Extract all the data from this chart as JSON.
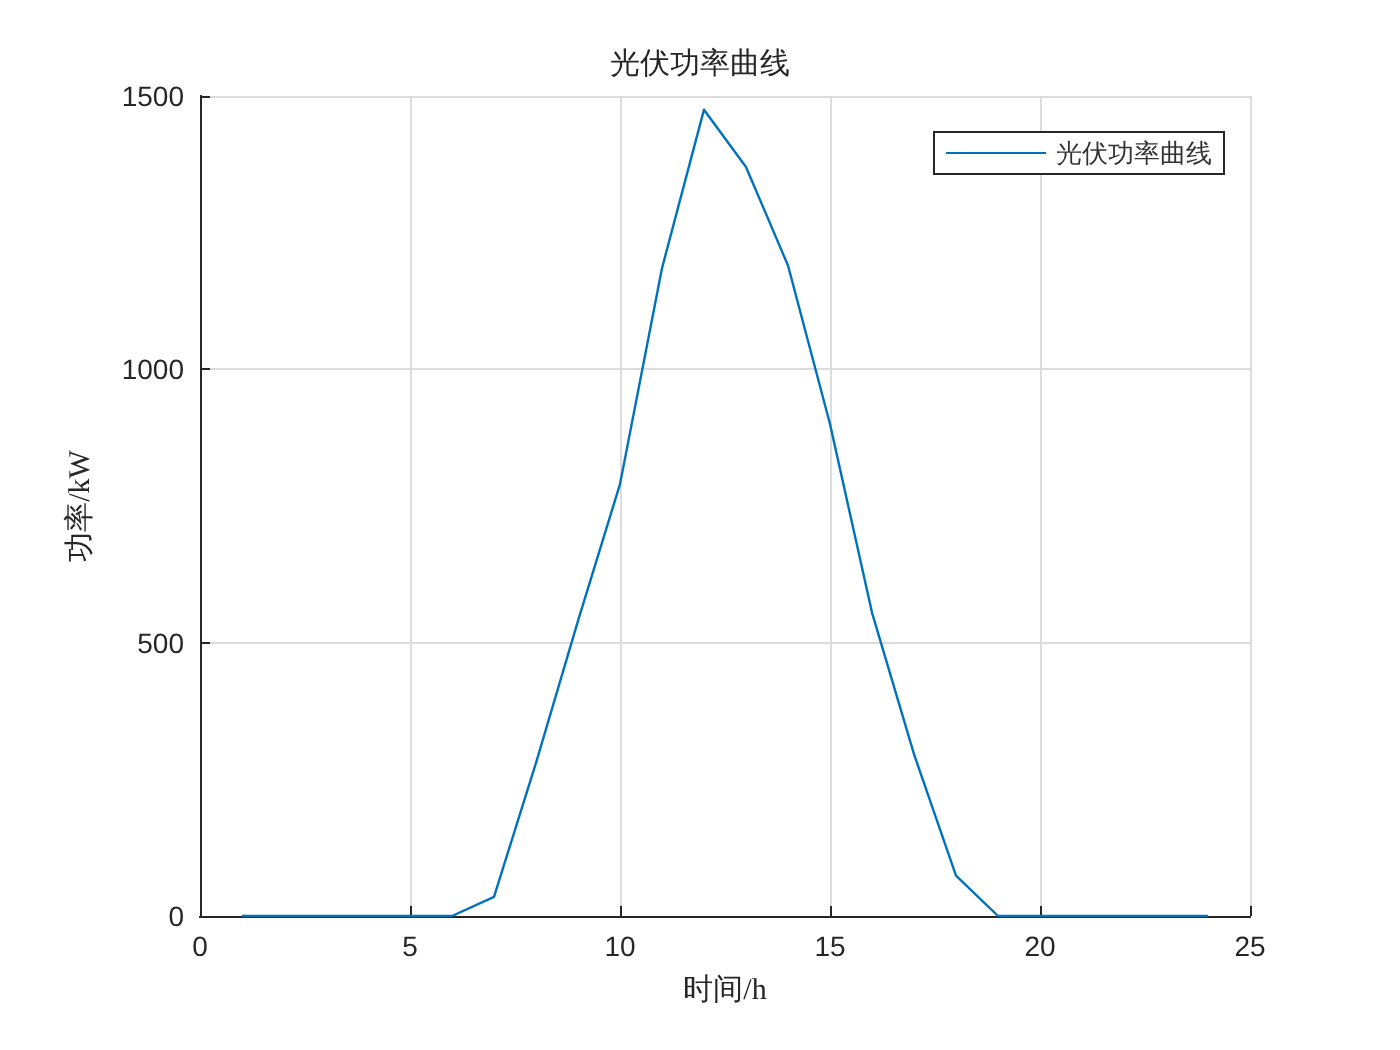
{
  "chart_data": {
    "type": "line",
    "title": "光伏功率曲线",
    "xlabel": "时间/h",
    "ylabel": "功率/kW",
    "x": [
      1,
      2,
      3,
      4,
      5,
      6,
      7,
      8,
      9,
      10,
      11,
      12,
      13,
      14,
      15,
      16,
      17,
      18,
      19,
      20,
      21,
      22,
      23,
      24
    ],
    "series": [
      {
        "name": "光伏功率曲线",
        "color": "#0072bd",
        "values": [
          0,
          0,
          0,
          0,
          0,
          0,
          35,
          280,
          540,
          790,
          1185,
          1475,
          1370,
          1190,
          900,
          555,
          296,
          74,
          0,
          0,
          0,
          0,
          0,
          0
        ]
      }
    ],
    "xlim": [
      0,
      25
    ],
    "xticks": [
      0,
      5,
      10,
      15,
      20,
      25
    ],
    "ylim": [
      0,
      1500
    ],
    "yticks": [
      0,
      500,
      1000,
      1500
    ],
    "grid": true,
    "legend": "top right",
    "marker": "none",
    "line_style": "solid"
  }
}
